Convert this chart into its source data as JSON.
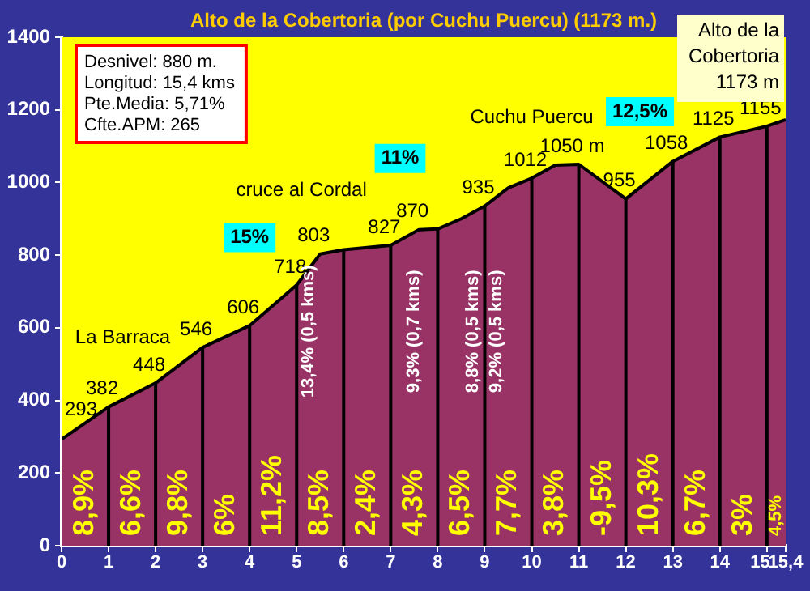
{
  "chart_data": {
    "type": "area",
    "title": "Alto de la Cobertoria (por Cuchu Puercu) (1173 m.)",
    "x": [
      0,
      1,
      2,
      3,
      4,
      5,
      5.5,
      6,
      7,
      7.6,
      8,
      8.5,
      9,
      9.5,
      10,
      10.5,
      11,
      12,
      13,
      14,
      15,
      15.4
    ],
    "series": [
      {
        "color": "#993366",
        "values": [
          293,
          382,
          448,
          546,
          606,
          718,
          803,
          815,
          827,
          870,
          872,
          900,
          935,
          985,
          1012,
          1048,
          1050,
          955,
          1058,
          1125,
          1155,
          1173
        ],
        "value_labels": [
          "293",
          "382",
          "448",
          "546",
          "606",
          "718",
          "803",
          null,
          "827",
          "870",
          null,
          null,
          "935",
          null,
          "1012",
          null,
          "1050 m",
          "955",
          "1058",
          "1125",
          "1155",
          null
        ]
      }
    ],
    "xlim": [
      0,
      15.4
    ],
    "xticks": [
      0,
      1,
      2,
      3,
      4,
      5,
      6,
      7,
      8,
      9,
      10,
      11,
      12,
      13,
      14,
      15,
      {
        "value": 15.4,
        "label": "15,4"
      }
    ],
    "ylim": [
      0,
      1400
    ],
    "yticks": [
      0,
      200,
      400,
      600,
      800,
      1000,
      1200,
      1400
    ],
    "grid": "x",
    "legend": false,
    "annotations": [
      "Desnivel: 880 m.",
      "Longitud: 15,4 kms",
      "Pte.Media: 5,71%",
      "Cfte.APM: 265",
      "Alto de la Cobertoria 1173 m",
      "La Barraca",
      "cruce al Cordal",
      "Cuchu Puercu",
      "15%",
      "11%",
      "12,5%",
      {
        "text": "8,9%",
        "x": 1,
        "y": 382
      },
      {
        "text": "6,6%",
        "x": 2,
        "y": 448
      },
      {
        "text": "9,8%",
        "x": 3,
        "y": 546
      },
      {
        "text": "6%",
        "x": 4,
        "y": 606
      },
      {
        "text": "11,2%",
        "x": 5,
        "y": 718
      },
      {
        "text": "8,5%",
        "x": 6,
        "y": 815
      },
      {
        "text": "2,4%",
        "x": 7,
        "y": 827
      },
      {
        "text": "4,3%",
        "x": 8,
        "y": 872
      },
      {
        "text": "6,5%",
        "x": 9,
        "y": 935
      },
      "7,7%",
      "3,8%",
      "-9,5%",
      "10,3%",
      "6,7%",
      "3%",
      "4,5%",
      "13,4% (0,5 kms)",
      "9,3% (0,7 kms)",
      "8,8% (0,5 kms)",
      "9,2% (0,5 kms)"
    ]
  }
}
